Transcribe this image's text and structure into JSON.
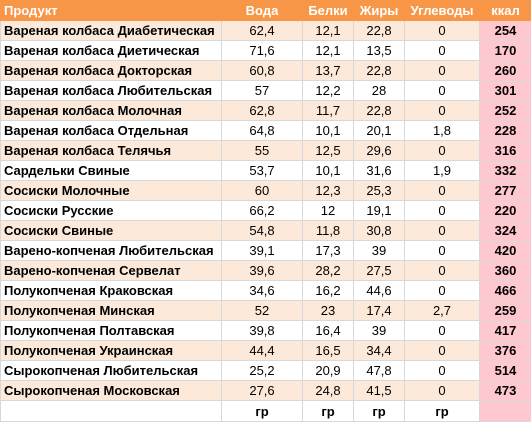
{
  "headers": {
    "product": "Продукт",
    "water": "Вода",
    "protein": "Белки",
    "fat": "Жиры",
    "carbs": "Углеводы",
    "kcal": "ккал"
  },
  "rows": [
    {
      "product": "Вареная колбаса Диабетическая",
      "water": "62,4",
      "protein": "12,1",
      "fat": "22,8",
      "carbs": "0",
      "kcal": "254"
    },
    {
      "product": "Вареная колбаса Диетическая",
      "water": "71,6",
      "protein": "12,1",
      "fat": "13,5",
      "carbs": "0",
      "kcal": "170"
    },
    {
      "product": "Вареная колбаса Докторская",
      "water": "60,8",
      "protein": "13,7",
      "fat": "22,8",
      "carbs": "0",
      "kcal": "260"
    },
    {
      "product": "Вареная колбаса Любительская",
      "water": "57",
      "protein": "12,2",
      "fat": "28",
      "carbs": "0",
      "kcal": "301"
    },
    {
      "product": "Вареная колбаса Молочная",
      "water": "62,8",
      "protein": "11,7",
      "fat": "22,8",
      "carbs": "0",
      "kcal": "252"
    },
    {
      "product": "Вареная колбаса Отдельная",
      "water": "64,8",
      "protein": "10,1",
      "fat": "20,1",
      "carbs": "1,8",
      "kcal": "228"
    },
    {
      "product": "Вареная колбаса Телячья",
      "water": "55",
      "protein": "12,5",
      "fat": "29,6",
      "carbs": "0",
      "kcal": "316"
    },
    {
      "product": "Сардельки Свиные",
      "water": "53,7",
      "protein": "10,1",
      "fat": "31,6",
      "carbs": "1,9",
      "kcal": "332"
    },
    {
      "product": "Сосиски Молочные",
      "water": "60",
      "protein": "12,3",
      "fat": "25,3",
      "carbs": "0",
      "kcal": "277"
    },
    {
      "product": "Сосиски Русские",
      "water": "66,2",
      "protein": "12",
      "fat": "19,1",
      "carbs": "0",
      "kcal": "220"
    },
    {
      "product": "Сосиски Свиные",
      "water": "54,8",
      "protein": "11,8",
      "fat": "30,8",
      "carbs": "0",
      "kcal": "324"
    },
    {
      "product": "Варено-копченая Любительская",
      "water": "39,1",
      "protein": "17,3",
      "fat": "39",
      "carbs": "0",
      "kcal": "420"
    },
    {
      "product": "Варено-копченая Сервелат",
      "water": "39,6",
      "protein": "28,2",
      "fat": "27,5",
      "carbs": "0",
      "kcal": "360"
    },
    {
      "product": "Полукопченая Краковская",
      "water": "34,6",
      "protein": "16,2",
      "fat": "44,6",
      "carbs": "0",
      "kcal": "466"
    },
    {
      "product": "Полукопченая Минская",
      "water": "52",
      "protein": "23",
      "fat": "17,4",
      "carbs": "2,7",
      "kcal": "259"
    },
    {
      "product": "Полукопченая Полтавская",
      "water": "39,8",
      "protein": "16,4",
      "fat": "39",
      "carbs": "0",
      "kcal": "417"
    },
    {
      "product": "Полукопченая Украинская",
      "water": "44,4",
      "protein": "16,5",
      "fat": "34,4",
      "carbs": "0",
      "kcal": "376"
    },
    {
      "product": "Сырокопченая Любительская",
      "water": "25,2",
      "protein": "20,9",
      "fat": "47,8",
      "carbs": "0",
      "kcal": "514"
    },
    {
      "product": "Сырокопченая Московская",
      "water": "27,6",
      "protein": "24,8",
      "fat": "41,5",
      "carbs": "0",
      "kcal": "473"
    }
  ],
  "units": {
    "product": "",
    "water": "гр",
    "protein": "гр",
    "fat": "гр",
    "carbs": "гр",
    "kcal": ""
  },
  "colors": {
    "header_bg": "#f79646",
    "band_bg": "#fde9d9",
    "kcal_bg": "#ffc7ce",
    "grid": "#d8d8d8"
  }
}
